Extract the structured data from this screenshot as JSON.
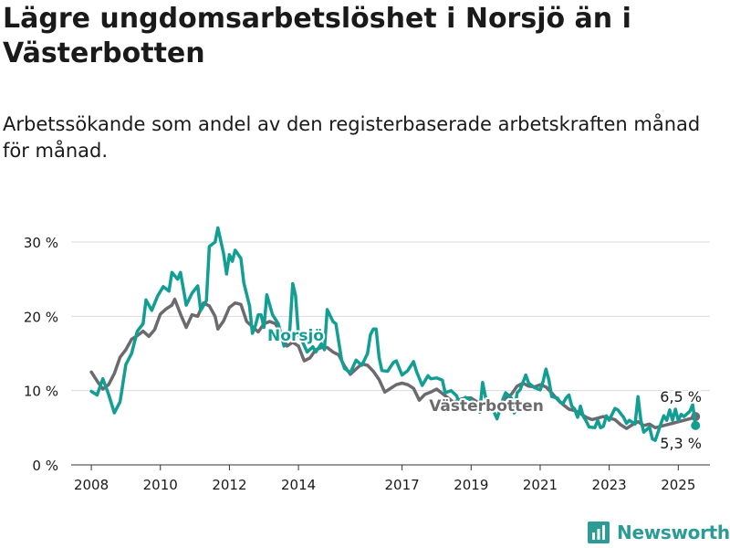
{
  "title": "Lägre ungdomsarbetslöshet i Norsjö än i Västerbotten",
  "subtitle": "Arbetssökande som andel av den registerbaserade arbetskraften månad för månad.",
  "brand": "Newsworthy",
  "colors": {
    "norsjo": "#139e93",
    "vasterbotten": "#6b6b6f",
    "brand": "#2a9c95"
  },
  "chart_data": {
    "type": "line",
    "xlabel": "",
    "ylabel": "",
    "ylim": [
      0,
      30
    ],
    "xlim": [
      "2007-06",
      "2025-12"
    ],
    "y_ticks": [
      0,
      10,
      20,
      30
    ],
    "y_tick_labels": [
      "0 %",
      "10 %",
      "20 %",
      "30 %"
    ],
    "x_ticks": [
      "2008",
      "2010",
      "2012",
      "2014",
      "2017",
      "2019",
      "2021",
      "2023",
      "2025"
    ],
    "grid": "horizontal",
    "series": [
      {
        "name": "Norsjö",
        "color": "#139e93",
        "last_value_label": "5,3 %",
        "points": [
          [
            "2008-01",
            9.9
          ],
          [
            "2008-03",
            9.4
          ],
          [
            "2008-05",
            11.6
          ],
          [
            "2008-07",
            9.5
          ],
          [
            "2008-09",
            7.0
          ],
          [
            "2008-11",
            8.5
          ],
          [
            "2009-01",
            13.5
          ],
          [
            "2009-03",
            15.0
          ],
          [
            "2009-05",
            18.0
          ],
          [
            "2009-07",
            19.0
          ],
          [
            "2009-08",
            22.2
          ],
          [
            "2009-10",
            20.8
          ],
          [
            "2009-12",
            22.7
          ],
          [
            "2010-02",
            24.0
          ],
          [
            "2010-04",
            23.4
          ],
          [
            "2010-05",
            25.9
          ],
          [
            "2010-07",
            25.0
          ],
          [
            "2010-08",
            25.9
          ],
          [
            "2010-10",
            21.5
          ],
          [
            "2010-12",
            23.1
          ],
          [
            "2011-02",
            24.1
          ],
          [
            "2011-03",
            20.8
          ],
          [
            "2011-05",
            22.1
          ],
          [
            "2011-06",
            29.4
          ],
          [
            "2011-08",
            30.0
          ],
          [
            "2011-09",
            31.9
          ],
          [
            "2011-11",
            28.4
          ],
          [
            "2011-12",
            25.7
          ],
          [
            "2012-01",
            28.3
          ],
          [
            "2012-02",
            27.4
          ],
          [
            "2012-03",
            28.9
          ],
          [
            "2012-05",
            27.8
          ],
          [
            "2012-06",
            24.5
          ],
          [
            "2012-08",
            21.4
          ],
          [
            "2012-09",
            17.7
          ],
          [
            "2012-10",
            18.7
          ],
          [
            "2012-11",
            20.2
          ],
          [
            "2012-12",
            20.2
          ],
          [
            "2013-01",
            18.5
          ],
          [
            "2013-02",
            22.9
          ],
          [
            "2013-04",
            20.2
          ],
          [
            "2013-06",
            19.0
          ],
          [
            "2013-08",
            16.0
          ],
          [
            "2013-09",
            17.2
          ],
          [
            "2013-10",
            18.2
          ],
          [
            "2013-11",
            24.4
          ],
          [
            "2013-12",
            22.8
          ],
          [
            "2014-01",
            17.5
          ],
          [
            "2014-02",
            16.9
          ],
          [
            "2014-04",
            15.2
          ],
          [
            "2014-06",
            15.9
          ],
          [
            "2014-07",
            15.2
          ],
          [
            "2014-09",
            16.3
          ],
          [
            "2014-10",
            15.5
          ],
          [
            "2014-11",
            20.9
          ],
          [
            "2015-01",
            19.3
          ],
          [
            "2015-02",
            19.0
          ],
          [
            "2015-04",
            14.1
          ],
          [
            "2015-05",
            13.0
          ],
          [
            "2015-07",
            12.4
          ],
          [
            "2015-09",
            14.1
          ],
          [
            "2015-11",
            13.4
          ],
          [
            "2016-01",
            15.0
          ],
          [
            "2016-02",
            17.5
          ],
          [
            "2016-03",
            18.3
          ],
          [
            "2016-04",
            18.3
          ],
          [
            "2016-05",
            14.5
          ],
          [
            "2016-06",
            12.7
          ],
          [
            "2016-08",
            12.6
          ],
          [
            "2016-10",
            13.8
          ],
          [
            "2016-11",
            14.0
          ],
          [
            "2017-01",
            12.1
          ],
          [
            "2017-03",
            12.7
          ],
          [
            "2017-05",
            13.9
          ],
          [
            "2017-06",
            12.6
          ],
          [
            "2017-08",
            10.7
          ],
          [
            "2017-10",
            12.0
          ],
          [
            "2017-11",
            11.6
          ],
          [
            "2018-01",
            11.7
          ],
          [
            "2018-03",
            11.4
          ],
          [
            "2018-04",
            9.7
          ],
          [
            "2018-06",
            10.0
          ],
          [
            "2018-08",
            9.3
          ],
          [
            "2018-09",
            8.0
          ],
          [
            "2018-11",
            9.1
          ],
          [
            "2019-01",
            8.7
          ],
          [
            "2019-03",
            7.7
          ],
          [
            "2019-04",
            7.1
          ],
          [
            "2019-05",
            11.1
          ],
          [
            "2019-06",
            9.1
          ],
          [
            "2019-08",
            7.5
          ],
          [
            "2019-09",
            7.1
          ],
          [
            "2019-10",
            6.2
          ],
          [
            "2019-12",
            8.8
          ],
          [
            "2020-01",
            9.7
          ],
          [
            "2020-03",
            9.0
          ],
          [
            "2020-04",
            7.0
          ],
          [
            "2020-05",
            9.7
          ],
          [
            "2020-06",
            10.1
          ],
          [
            "2020-08",
            12.1
          ],
          [
            "2020-09",
            11.0
          ],
          [
            "2020-11",
            10.4
          ],
          [
            "2021-01",
            10.1
          ],
          [
            "2021-02",
            11.2
          ],
          [
            "2021-03",
            12.9
          ],
          [
            "2021-04",
            11.5
          ],
          [
            "2021-05",
            9.2
          ],
          [
            "2021-07",
            9.0
          ],
          [
            "2021-08",
            8.4
          ],
          [
            "2021-09",
            8.3
          ],
          [
            "2021-10",
            9.0
          ],
          [
            "2021-11",
            9.4
          ],
          [
            "2021-12",
            7.9
          ],
          [
            "2022-01",
            7.5
          ],
          [
            "2022-02",
            6.4
          ],
          [
            "2022-03",
            7.9
          ],
          [
            "2022-04",
            6.5
          ],
          [
            "2022-05",
            5.9
          ],
          [
            "2022-06",
            5.1
          ],
          [
            "2022-08",
            5.0
          ],
          [
            "2022-09",
            6.0
          ],
          [
            "2022-10",
            5.0
          ],
          [
            "2022-11",
            5.2
          ],
          [
            "2022-12",
            6.6
          ],
          [
            "2023-01",
            6.0
          ],
          [
            "2023-03",
            7.6
          ],
          [
            "2023-04",
            7.4
          ],
          [
            "2023-06",
            6.4
          ],
          [
            "2023-07",
            5.6
          ],
          [
            "2023-08",
            6.0
          ],
          [
            "2023-10",
            5.5
          ],
          [
            "2023-11",
            9.2
          ],
          [
            "2023-12",
            6.0
          ],
          [
            "2024-01",
            4.4
          ],
          [
            "2024-03",
            5.1
          ],
          [
            "2024-04",
            3.5
          ],
          [
            "2024-05",
            3.3
          ],
          [
            "2024-07",
            5.6
          ],
          [
            "2024-08",
            6.6
          ],
          [
            "2024-09",
            6.0
          ],
          [
            "2024-10",
            7.4
          ],
          [
            "2024-11",
            6.0
          ],
          [
            "2024-12",
            7.5
          ],
          [
            "2025-01",
            6.0
          ],
          [
            "2025-02",
            6.8
          ],
          [
            "2025-03",
            6.5
          ],
          [
            "2025-05",
            7.2
          ],
          [
            "2025-06",
            8.1
          ],
          [
            "2025-07",
            5.3
          ]
        ]
      },
      {
        "name": "Västerbotten",
        "color": "#6b6b6f",
        "last_value_label": "6,5 %",
        "points": [
          [
            "2008-01",
            12.5
          ],
          [
            "2008-03",
            11.3
          ],
          [
            "2008-05",
            10.2
          ],
          [
            "2008-07",
            10.8
          ],
          [
            "2008-09",
            12.3
          ],
          [
            "2008-11",
            14.5
          ],
          [
            "2009-01",
            15.5
          ],
          [
            "2009-03",
            16.9
          ],
          [
            "2009-05",
            17.4
          ],
          [
            "2009-07",
            18.0
          ],
          [
            "2009-09",
            17.3
          ],
          [
            "2009-11",
            18.2
          ],
          [
            "2010-01",
            20.3
          ],
          [
            "2010-03",
            21.0
          ],
          [
            "2010-05",
            21.5
          ],
          [
            "2010-06",
            22.3
          ],
          [
            "2010-08",
            20.3
          ],
          [
            "2010-10",
            18.5
          ],
          [
            "2010-12",
            20.2
          ],
          [
            "2011-02",
            20.0
          ],
          [
            "2011-04",
            21.8
          ],
          [
            "2011-06",
            21.4
          ],
          [
            "2011-08",
            20.0
          ],
          [
            "2011-09",
            18.3
          ],
          [
            "2011-11",
            19.4
          ],
          [
            "2012-01",
            21.2
          ],
          [
            "2012-03",
            21.8
          ],
          [
            "2012-05",
            21.6
          ],
          [
            "2012-07",
            19.3
          ],
          [
            "2012-09",
            18.6
          ],
          [
            "2012-11",
            17.9
          ],
          [
            "2013-01",
            19.0
          ],
          [
            "2013-03",
            19.3
          ],
          [
            "2013-05",
            19.0
          ],
          [
            "2013-07",
            17.6
          ],
          [
            "2013-09",
            16.0
          ],
          [
            "2013-11",
            16.5
          ],
          [
            "2014-01",
            16.0
          ],
          [
            "2014-03",
            14.0
          ],
          [
            "2014-05",
            14.4
          ],
          [
            "2014-07",
            15.5
          ],
          [
            "2014-09",
            15.8
          ],
          [
            "2014-11",
            15.8
          ],
          [
            "2015-01",
            15.2
          ],
          [
            "2015-03",
            14.8
          ],
          [
            "2015-05",
            13.3
          ],
          [
            "2015-07",
            12.2
          ],
          [
            "2015-09",
            12.9
          ],
          [
            "2015-11",
            13.6
          ],
          [
            "2016-01",
            13.4
          ],
          [
            "2016-03",
            12.6
          ],
          [
            "2016-05",
            11.5
          ],
          [
            "2016-07",
            9.8
          ],
          [
            "2016-09",
            10.3
          ],
          [
            "2016-11",
            10.8
          ],
          [
            "2017-01",
            11.0
          ],
          [
            "2017-03",
            10.8
          ],
          [
            "2017-05",
            10.3
          ],
          [
            "2017-07",
            8.7
          ],
          [
            "2017-09",
            9.5
          ],
          [
            "2017-11",
            9.8
          ],
          [
            "2018-01",
            10.2
          ],
          [
            "2018-03",
            9.6
          ],
          [
            "2018-05",
            9.0
          ],
          [
            "2018-07",
            8.4
          ],
          [
            "2018-09",
            8.8
          ],
          [
            "2018-11",
            9.0
          ],
          [
            "2019-01",
            9.0
          ],
          [
            "2019-03",
            8.5
          ],
          [
            "2019-05",
            8.4
          ],
          [
            "2019-07",
            8.2
          ],
          [
            "2019-09",
            7.8
          ],
          [
            "2019-11",
            8.0
          ],
          [
            "2020-01",
            9.0
          ],
          [
            "2020-03",
            9.5
          ],
          [
            "2020-05",
            10.6
          ],
          [
            "2020-07",
            11.0
          ],
          [
            "2020-09",
            10.6
          ],
          [
            "2020-11",
            10.5
          ],
          [
            "2021-01",
            10.8
          ],
          [
            "2021-03",
            10.5
          ],
          [
            "2021-05",
            9.7
          ],
          [
            "2021-07",
            8.8
          ],
          [
            "2021-09",
            8.1
          ],
          [
            "2021-11",
            7.5
          ],
          [
            "2022-01",
            7.3
          ],
          [
            "2022-03",
            6.9
          ],
          [
            "2022-05",
            6.4
          ],
          [
            "2022-07",
            6.1
          ],
          [
            "2022-09",
            6.3
          ],
          [
            "2022-11",
            6.5
          ],
          [
            "2023-01",
            6.3
          ],
          [
            "2023-03",
            6.1
          ],
          [
            "2023-05",
            5.4
          ],
          [
            "2023-07",
            4.9
          ],
          [
            "2023-09",
            5.4
          ],
          [
            "2023-11",
            5.8
          ],
          [
            "2024-01",
            5.3
          ],
          [
            "2024-03",
            5.5
          ],
          [
            "2024-05",
            5.0
          ],
          [
            "2024-07",
            5.2
          ],
          [
            "2024-09",
            5.4
          ],
          [
            "2024-11",
            5.6
          ],
          [
            "2025-01",
            5.8
          ],
          [
            "2025-03",
            6.0
          ],
          [
            "2025-05",
            6.2
          ],
          [
            "2025-07",
            6.5
          ]
        ]
      }
    ]
  }
}
